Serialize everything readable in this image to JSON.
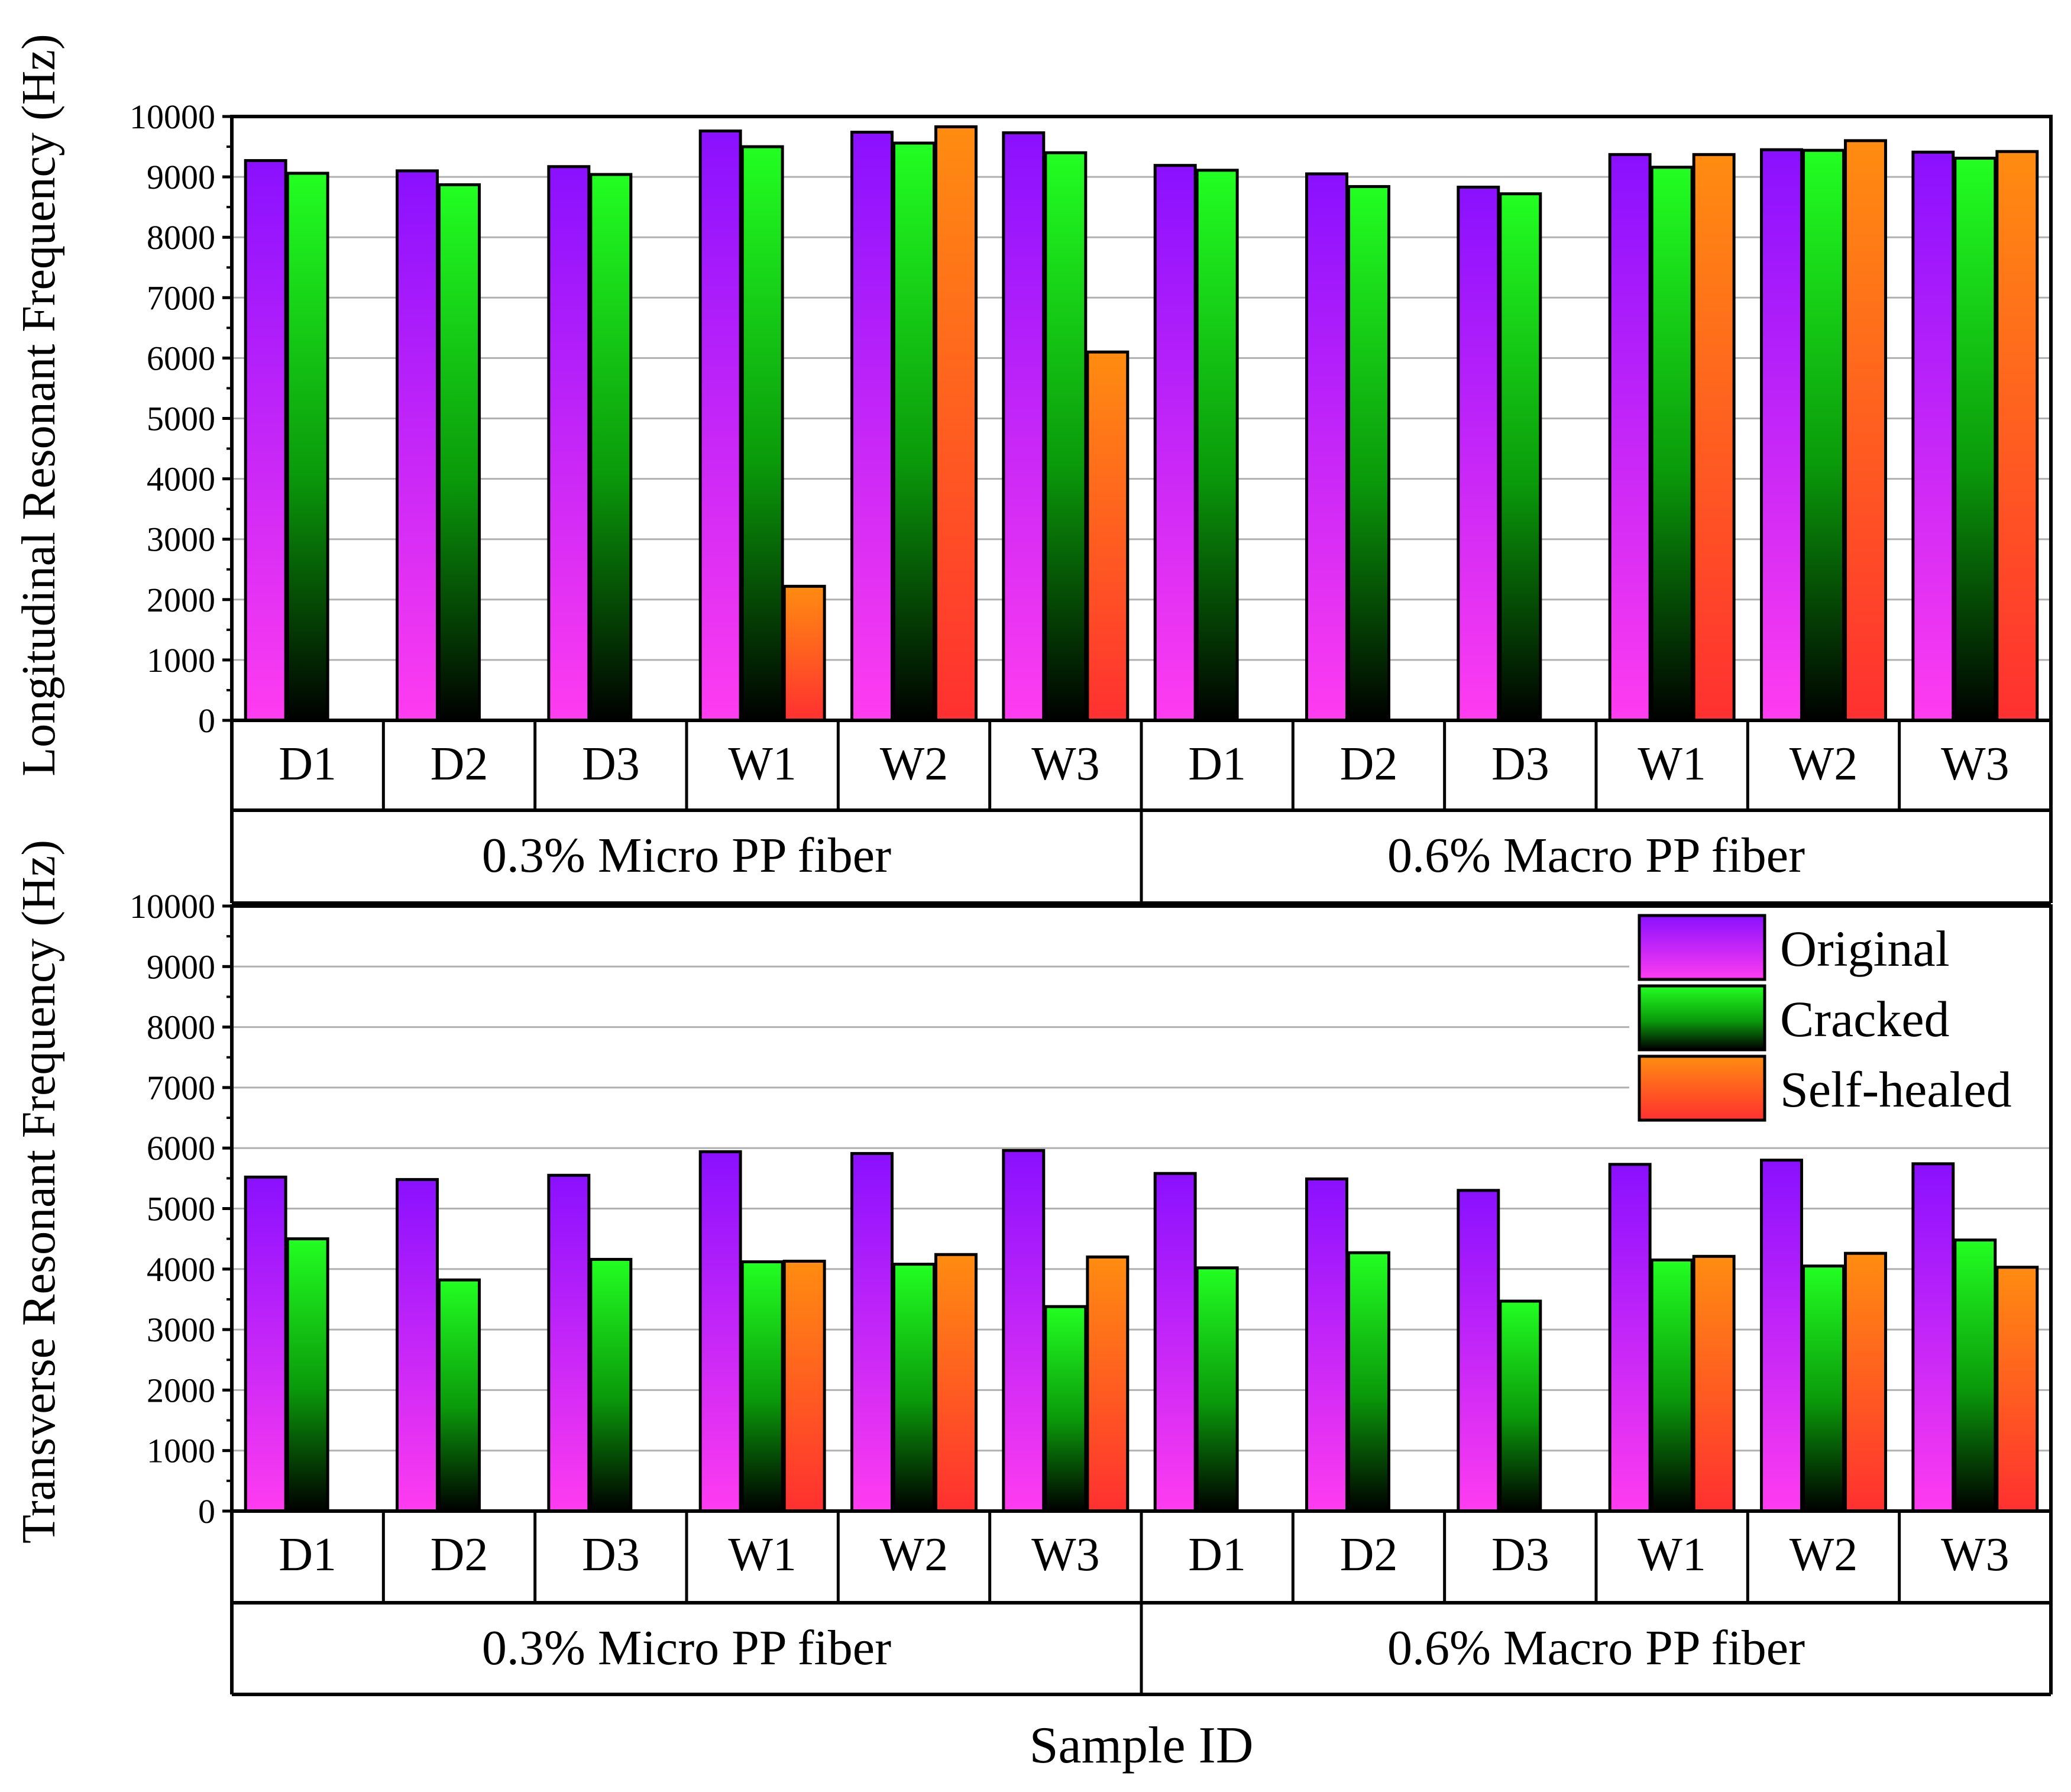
{
  "chart_data": [
    {
      "type": "bar",
      "title": "",
      "ylabel": "Longitudinal Resonant Frequency (Hz)",
      "xlabel": "",
      "ylim": [
        0,
        10000
      ],
      "yticks": [
        0,
        1000,
        2000,
        3000,
        4000,
        5000,
        6000,
        7000,
        8000,
        9000,
        10000
      ],
      "grid": true,
      "categories": [
        "D1",
        "D2",
        "D3",
        "W1",
        "W2",
        "W3",
        "D1",
        "D2",
        "D3",
        "W1",
        "W2",
        "W3"
      ],
      "groups": [
        {
          "label": "0.3% Micro PP fiber",
          "span": 6
        },
        {
          "label": "0.6% Macro PP fiber",
          "span": 6
        }
      ],
      "series": [
        {
          "name": "Original",
          "values": [
            9270,
            9100,
            9170,
            9760,
            9740,
            9730,
            9190,
            9050,
            8830,
            9370,
            9450,
            9410
          ]
        },
        {
          "name": "Cracked",
          "values": [
            9060,
            8870,
            9040,
            9500,
            9560,
            9400,
            9110,
            8840,
            8720,
            9160,
            9440,
            9310
          ]
        },
        {
          "name": "Self-healed",
          "values": [
            null,
            null,
            null,
            2220,
            9830,
            6100,
            null,
            null,
            null,
            9370,
            9600,
            9420
          ]
        }
      ]
    },
    {
      "type": "bar",
      "title": "",
      "ylabel": "Transverse Resonant Frequency (Hz)",
      "xlabel": "Sample ID",
      "ylim": [
        0,
        10000
      ],
      "yticks": [
        0,
        1000,
        2000,
        3000,
        4000,
        5000,
        6000,
        7000,
        8000,
        9000,
        10000
      ],
      "grid": true,
      "legend_position": "top-right",
      "categories": [
        "D1",
        "D2",
        "D3",
        "W1",
        "W2",
        "W3",
        "D1",
        "D2",
        "D3",
        "W1",
        "W2",
        "W3"
      ],
      "groups": [
        {
          "label": "0.3% Micro PP fiber",
          "span": 6
        },
        {
          "label": "0.6% Macro PP fiber",
          "span": 6
        }
      ],
      "series": [
        {
          "name": "Original",
          "values": [
            5520,
            5480,
            5550,
            5940,
            5910,
            5960,
            5580,
            5490,
            5300,
            5730,
            5800,
            5740
          ]
        },
        {
          "name": "Cracked",
          "values": [
            4500,
            3820,
            4160,
            4120,
            4080,
            3380,
            4020,
            4270,
            3470,
            4150,
            4050,
            4480
          ]
        },
        {
          "name": "Self-healed",
          "values": [
            null,
            null,
            null,
            4130,
            4240,
            4200,
            null,
            null,
            null,
            4210,
            4260,
            4030
          ]
        }
      ]
    }
  ],
  "colors": {
    "original_top": "#8a10ff",
    "original_bottom": "#ff3cf0",
    "cracked_top": "#22ff22",
    "cracked_bottom": "#000000",
    "selfhealed_top": "#ff8c10",
    "selfhealed_bottom": "#ff3030",
    "grid": "#b0b0b0"
  }
}
